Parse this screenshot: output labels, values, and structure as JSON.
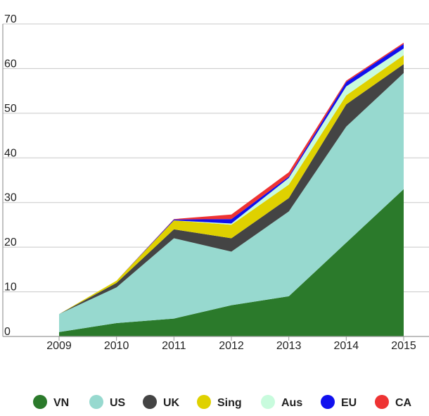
{
  "chart_data": {
    "type": "area",
    "stacked": true,
    "categories": [
      "2009",
      "2010",
      "2011",
      "2012",
      "2013",
      "2014",
      "2015"
    ],
    "ylim": [
      0,
      70
    ],
    "yticks": [
      "0",
      "10",
      "20",
      "30",
      "40",
      "50",
      "60",
      "70"
    ],
    "grid": true,
    "legend_position": "bottom",
    "series": [
      {
        "name": "VN",
        "color": "#2b7a2b",
        "values": [
          1,
          3,
          4,
          7,
          9,
          21,
          33
        ]
      },
      {
        "name": "US",
        "color": "#97d9cf",
        "values": [
          4,
          8,
          18,
          12,
          19,
          26,
          26
        ]
      },
      {
        "name": "UK",
        "color": "#444444",
        "values": [
          0,
          1,
          2,
          3,
          3,
          5,
          2
        ]
      },
      {
        "name": "Sing",
        "color": "#dfd100",
        "values": [
          0,
          0.5,
          2,
          3,
          3,
          2,
          2
        ]
      },
      {
        "name": "Aus",
        "color": "#c8fbdd",
        "values": [
          0,
          0,
          0,
          0.3,
          1.5,
          2,
          1.5
        ]
      },
      {
        "name": "EU",
        "color": "#1010ee",
        "values": [
          0,
          0,
          0.2,
          1,
          0.3,
          1,
          1
        ]
      },
      {
        "name": "CA",
        "color": "#ee3333",
        "values": [
          0,
          0,
          0.1,
          1,
          1,
          0.3,
          0.3
        ]
      }
    ]
  }
}
